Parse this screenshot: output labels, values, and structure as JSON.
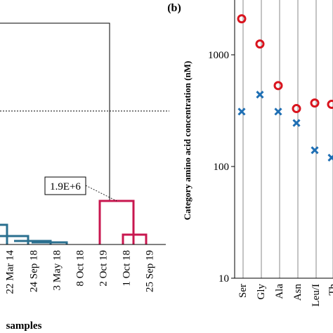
{
  "chart_data": [
    {
      "type": "dendrogram",
      "panel_label": "",
      "xlabel": "samples",
      "ylabel": "",
      "categories": [
        "22 Mar 14",
        "24 Sep 18",
        "3 May 18",
        "8 Oct 18",
        "2 Oct 19",
        "1 Oct 18",
        "25 Sep 19"
      ],
      "annotation": "1.9E+6",
      "cut_line": "dotted horizontal threshold",
      "clusters": [
        {
          "name": "",
          "color": "#2a6f8f"
        },
        {
          "name": "",
          "color": "#c8174f"
        }
      ]
    },
    {
      "type": "scatter",
      "panel_label": "(b)",
      "ylabel": "Category amino acid concentration (nM)",
      "xlabel": "",
      "yscale": "log",
      "ylim": [
        10,
        2500
      ],
      "yticks": [
        "10",
        "100",
        "1000"
      ],
      "categories": [
        "Ser",
        "Gly",
        "Ala",
        "Asn",
        "Leu/I",
        "Th"
      ],
      "series": [
        {
          "name": "",
          "marker": "circle",
          "color": "#d9141e",
          "values": [
            2100,
            1250,
            530,
            330,
            370,
            360
          ]
        },
        {
          "name": "",
          "marker": "cross",
          "color": "#1f6fb4",
          "values": [
            310,
            440,
            310,
            245,
            140,
            120
          ]
        }
      ],
      "grid": "vertical lines at each category"
    }
  ]
}
